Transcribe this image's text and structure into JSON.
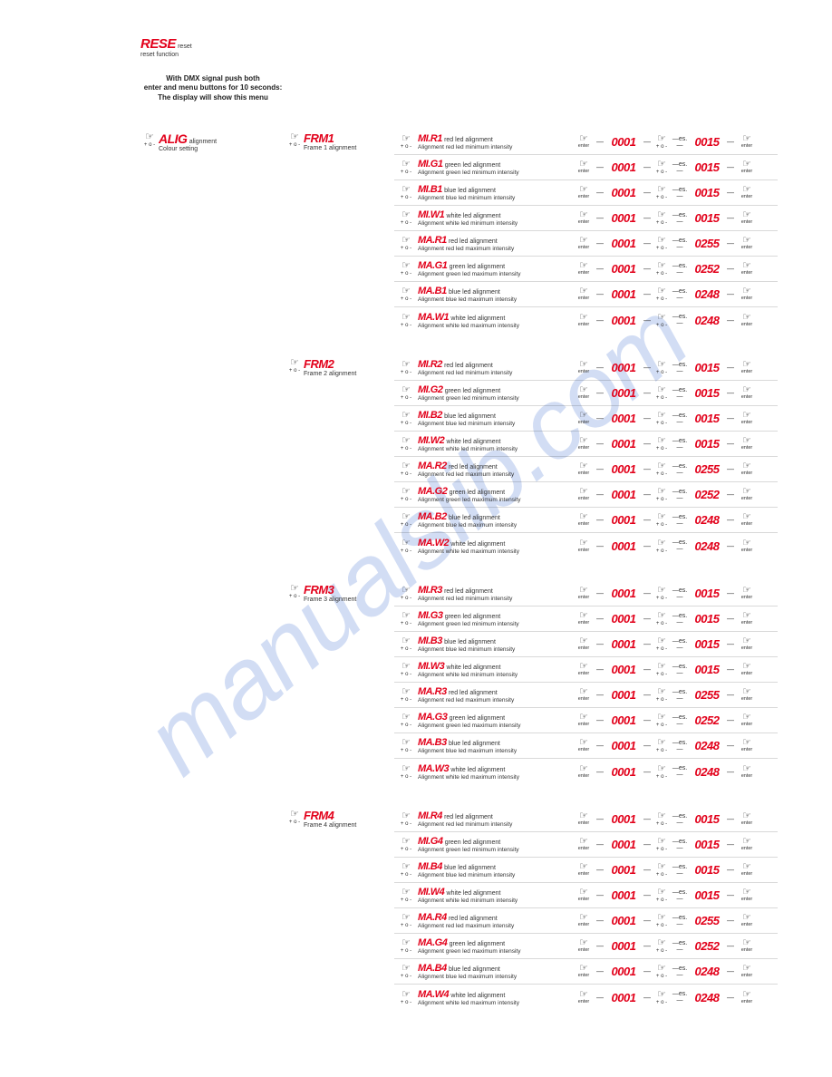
{
  "watermark": "manualslib.com",
  "reset": {
    "code": "RESE",
    "label": "reset",
    "sub": "reset function"
  },
  "note": {
    "l1": "With DMX signal push both",
    "l2": "enter and menu buttons for 10 seconds:",
    "l3": "The display will show this menu"
  },
  "alig": {
    "code": "ALIG",
    "label": "alignment",
    "sub": "Colour setting"
  },
  "nav": {
    "enter": "enter",
    "plusminus": "+ o -",
    "es": "es."
  },
  "frames": [
    {
      "code": "FRM1",
      "sub": "Frame 1 alignment",
      "params": [
        {
          "code": "MI.R1",
          "desc": "red led alignment",
          "sub": "Alignment red led minimum intensity",
          "v1": "0001",
          "v2": "0015"
        },
        {
          "code": "MI.G1",
          "desc": "green led alignment",
          "sub": "Alignment green led minimum intensity",
          "v1": "0001",
          "v2": "0015"
        },
        {
          "code": "MI.B1",
          "desc": "blue led alignment",
          "sub": "Alignment blue led minimum intensity",
          "v1": "0001",
          "v2": "0015"
        },
        {
          "code": "MI.W1",
          "desc": "white led alignment",
          "sub": "Alignment white led minimum intensity",
          "v1": "0001",
          "v2": "0015"
        },
        {
          "code": "MA.R1",
          "desc": "red led alignment",
          "sub": "Alignment red led maximum intensity",
          "v1": "0001",
          "v2": "0255"
        },
        {
          "code": "MA.G1",
          "desc": "green led alignment",
          "sub": "Alignment green led maximum intensity",
          "v1": "0001",
          "v2": "0252"
        },
        {
          "code": "MA.B1",
          "desc": "blue led alignment",
          "sub": "Alignment blue led maximum intensity",
          "v1": "0001",
          "v2": "0248"
        },
        {
          "code": "MA.W1",
          "desc": "white led alignment",
          "sub": "Alignment white led maximum intensity",
          "v1": "0001",
          "v2": "0248"
        }
      ]
    },
    {
      "code": "FRM2",
      "sub": "Frame 2 alignment",
      "params": [
        {
          "code": "MI.R2",
          "desc": "red led alignment",
          "sub": "Alignment red led minimum intensity",
          "v1": "0001",
          "v2": "0015"
        },
        {
          "code": "MI.G2",
          "desc": "green led alignment",
          "sub": "Alignment green led minimum intensity",
          "v1": "0001",
          "v2": "0015"
        },
        {
          "code": "MI.B2",
          "desc": "blue led alignment",
          "sub": "Alignment blue led minimum intensity",
          "v1": "0001",
          "v2": "0015"
        },
        {
          "code": "MI.W2",
          "desc": "white led alignment",
          "sub": "Alignment white led minimum intensity",
          "v1": "0001",
          "v2": "0015"
        },
        {
          "code": "MA.R2",
          "desc": "red led alignment",
          "sub": "Alignment red led maximum intensity",
          "v1": "0001",
          "v2": "0255"
        },
        {
          "code": "MA.G2",
          "desc": "green led alignment",
          "sub": "Alignment green led maximum intensity",
          "v1": "0001",
          "v2": "0252"
        },
        {
          "code": "MA.B2",
          "desc": "blue led alignment",
          "sub": "Alignment blue led maximum intensity",
          "v1": "0001",
          "v2": "0248"
        },
        {
          "code": "MA.W2",
          "desc": "white led alignment",
          "sub": "Alignment white led maximum intensity",
          "v1": "0001",
          "v2": "0248"
        }
      ]
    },
    {
      "code": "FRM3",
      "sub": "Frame 3 alignment",
      "params": [
        {
          "code": "MI.R3",
          "desc": "red led alignment",
          "sub": "Alignment red led minimum intensity",
          "v1": "0001",
          "v2": "0015"
        },
        {
          "code": "MI.G3",
          "desc": "green led alignment",
          "sub": "Alignment green led minimum intensity",
          "v1": "0001",
          "v2": "0015"
        },
        {
          "code": "MI.B3",
          "desc": "blue led alignment",
          "sub": "Alignment blue led minimum intensity",
          "v1": "0001",
          "v2": "0015"
        },
        {
          "code": "MI.W3",
          "desc": "white led alignment",
          "sub": "Alignment white led minimum intensity",
          "v1": "0001",
          "v2": "0015"
        },
        {
          "code": "MA.R3",
          "desc": "red led alignment",
          "sub": "Alignment red led maximum intensity",
          "v1": "0001",
          "v2": "0255"
        },
        {
          "code": "MA.G3",
          "desc": "green led alignment",
          "sub": "Alignment green led maximum intensity",
          "v1": "0001",
          "v2": "0252"
        },
        {
          "code": "MA.B3",
          "desc": "blue led alignment",
          "sub": "Alignment blue led maximum intensity",
          "v1": "0001",
          "v2": "0248"
        },
        {
          "code": "MA.W3",
          "desc": "white led alignment",
          "sub": "Alignment white led maximum intensity",
          "v1": "0001",
          "v2": "0248"
        }
      ]
    },
    {
      "code": "FRM4",
      "sub": "Frame 4 alignment",
      "params": [
        {
          "code": "MI.R4",
          "desc": "red led alignment",
          "sub": "Alignment red led minimum intensity",
          "v1": "0001",
          "v2": "0015"
        },
        {
          "code": "MI.G4",
          "desc": "green led alignment",
          "sub": "Alignment green led minimum intensity",
          "v1": "0001",
          "v2": "0015"
        },
        {
          "code": "MI.B4",
          "desc": "blue led alignment",
          "sub": "Alignment blue led minimum intensity",
          "v1": "0001",
          "v2": "0015"
        },
        {
          "code": "MI.W4",
          "desc": "white led alignment",
          "sub": "Alignment white led minimum intensity",
          "v1": "0001",
          "v2": "0015"
        },
        {
          "code": "MA.R4",
          "desc": "red led alignment",
          "sub": "Alignment red led maximum intensity",
          "v1": "0001",
          "v2": "0255"
        },
        {
          "code": "MA.G4",
          "desc": "green led alignment",
          "sub": "Alignment green led maximum intensity",
          "v1": "0001",
          "v2": "0252"
        },
        {
          "code": "MA.B4",
          "desc": "blue led alignment",
          "sub": "Alignment blue led maximum intensity",
          "v1": "0001",
          "v2": "0248"
        },
        {
          "code": "MA.W4",
          "desc": "white led alignment",
          "sub": "Alignment white led maximum intensity",
          "v1": "0001",
          "v2": "0248"
        }
      ]
    }
  ],
  "colors": {
    "red": "#e2001a",
    "watermark": "#9db5e8",
    "text": "#333333"
  }
}
